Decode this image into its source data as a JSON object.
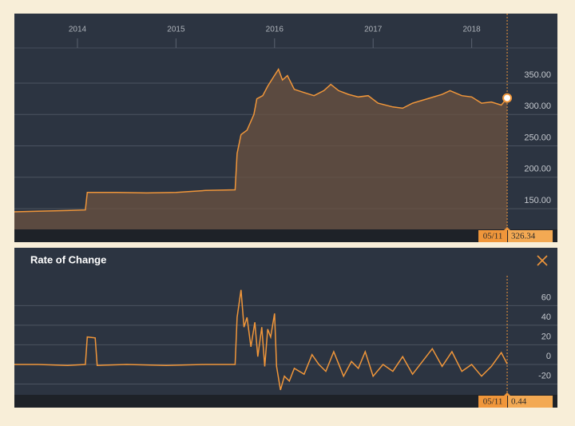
{
  "chart_data": [
    {
      "type": "area",
      "color": "#f0963a",
      "cursor_date": "05/11",
      "x": [
        2013.36,
        2013.6,
        2013.9,
        2014.08,
        2014.1,
        2014.4,
        2014.7,
        2015.0,
        2015.3,
        2015.6,
        2015.62,
        2015.66,
        2015.72,
        2015.79,
        2015.82,
        2015.88,
        2015.93,
        2015.99,
        2016.04,
        2016.08,
        2016.13,
        2016.2,
        2016.3,
        2016.4,
        2016.5,
        2016.57,
        2016.65,
        2016.75,
        2016.85,
        2016.95,
        2017.05,
        2017.2,
        2017.3,
        2017.4,
        2017.55,
        2017.7,
        2017.78,
        2017.9,
        2018.0,
        2018.1,
        2018.2,
        2018.3,
        2018.36
      ],
      "values": [
        145,
        146,
        147,
        148,
        176,
        176,
        175,
        176,
        179,
        180,
        238,
        268,
        275,
        300,
        325,
        330,
        345,
        360,
        372,
        355,
        362,
        340,
        335,
        330,
        338,
        348,
        338,
        332,
        328,
        330,
        318,
        312,
        310,
        318,
        325,
        332,
        338,
        330,
        328,
        318,
        320,
        315,
        326.34
      ],
      "xlim": [
        2013.36,
        2018.87
      ],
      "xticks": [
        2014,
        2015,
        2016,
        2017,
        2018
      ],
      "ylim": [
        117,
        406
      ],
      "yticks": [
        {
          "value": 150,
          "label": "150.00"
        },
        {
          "value": 200,
          "label": "200.00"
        },
        {
          "value": 250,
          "label": "250.00"
        },
        {
          "value": 300,
          "label": "300.00"
        },
        {
          "value": 350,
          "label": "350.00"
        }
      ],
      "grid": true
    },
    {
      "type": "line",
      "title": "Rate of Change",
      "color": "#f0963a",
      "cursor_date": "05/11",
      "x": [
        2013.36,
        2013.6,
        2013.9,
        2014.08,
        2014.1,
        2014.18,
        2014.2,
        2014.5,
        2014.9,
        2015.3,
        2015.6,
        2015.62,
        2015.66,
        2015.69,
        2015.72,
        2015.76,
        2015.8,
        2015.83,
        2015.87,
        2015.9,
        2015.93,
        2015.96,
        2016.0,
        2016.02,
        2016.06,
        2016.1,
        2016.15,
        2016.2,
        2016.3,
        2016.38,
        2016.45,
        2016.52,
        2016.6,
        2016.7,
        2016.78,
        2016.85,
        2016.92,
        2017.0,
        2017.1,
        2017.2,
        2017.3,
        2017.4,
        2017.5,
        2017.6,
        2017.7,
        2017.8,
        2017.9,
        2018.0,
        2018.1,
        2018.2,
        2018.3,
        2018.36
      ],
      "values": [
        0,
        0,
        -1,
        0,
        28,
        27,
        -1,
        0,
        -1,
        0,
        0,
        48,
        76,
        38,
        48,
        18,
        43,
        8,
        38,
        -2,
        36,
        28,
        52,
        -2,
        -26,
        -12,
        -17,
        -4,
        -10,
        10,
        0,
        -7,
        13,
        -12,
        3,
        -4,
        13,
        -12,
        0,
        -7,
        8,
        -10,
        3,
        16,
        -2,
        13,
        -7,
        0,
        -12,
        -2,
        12,
        0.44
      ],
      "xlim": [
        2013.36,
        2018.87
      ],
      "ylim": [
        -31,
        88
      ],
      "yticks": [
        -20,
        0,
        20,
        40,
        60
      ],
      "grid": true
    }
  ]
}
